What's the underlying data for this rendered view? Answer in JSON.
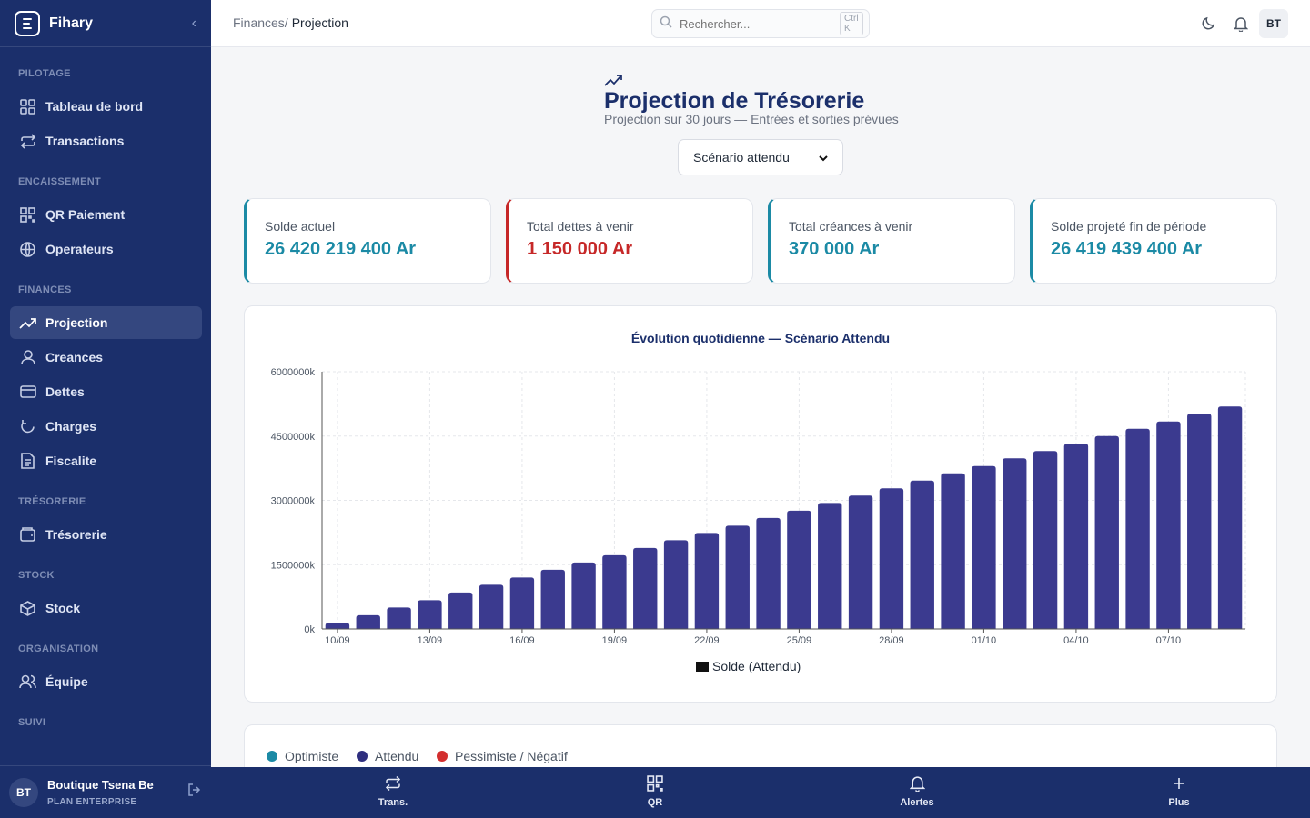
{
  "app": {
    "name": "Fihary"
  },
  "sidebar": {
    "sections": [
      {
        "label": "PILOTAGE"
      },
      {
        "label": "ENCAISSEMENT"
      },
      {
        "label": "FINANCES"
      },
      {
        "label": "TRÉSORERIE"
      },
      {
        "label": "STOCK"
      },
      {
        "label": "ORGANISATION"
      },
      {
        "label": "SUIVI"
      }
    ],
    "items": [
      {
        "label": "Tableau de bord",
        "icon": "grid-icon"
      },
      {
        "label": "Transactions",
        "icon": "repeat-icon"
      },
      {
        "label": "QR Paiement",
        "icon": "qr-icon"
      },
      {
        "label": "Operateurs",
        "icon": "globe-icon"
      },
      {
        "label": "Projection",
        "icon": "trending-up-icon",
        "active": true
      },
      {
        "label": "Creances",
        "icon": "user-icon"
      },
      {
        "label": "Dettes",
        "icon": "card-icon"
      },
      {
        "label": "Charges",
        "icon": "refresh-icon"
      },
      {
        "label": "Fiscalite",
        "icon": "document-icon"
      },
      {
        "label": "Trésorerie",
        "icon": "wallet-icon"
      },
      {
        "label": "Stock",
        "icon": "box-icon"
      },
      {
        "label": "Équipe",
        "icon": "users-icon"
      }
    ],
    "footer": {
      "initials": "BT",
      "org_name": "Boutique Tsena Be",
      "plan": "PLAN ENTERPRISE"
    }
  },
  "topbar": {
    "breadcrumb_parent": "Finances/",
    "breadcrumb_current": "Projection",
    "search_placeholder": "Rechercher...",
    "search_shortcut": "Ctrl K",
    "avatar": "BT"
  },
  "page": {
    "title": "Projection de Trésorerie",
    "subtitle": "Projection sur 30 jours — Entrées et sorties prévues",
    "scenario_selected": "Scénario attendu"
  },
  "kpis": [
    {
      "label": "Solde actuel",
      "value": "26 420 219 400 Ar",
      "color": "#1b8aa5"
    },
    {
      "label": "Total dettes à venir",
      "value": "1 150 000 Ar",
      "color": "#c62828"
    },
    {
      "label": "Total créances à venir",
      "value": "370 000 Ar",
      "color": "#1b8aa5"
    },
    {
      "label": "Solde projeté fin de période",
      "value": "26 419 439 400 Ar",
      "color": "#1b8aa5"
    }
  ],
  "chart_data": {
    "type": "bar",
    "title": "Évolution quotidienne — Scénario Attendu",
    "xlabel": "",
    "ylabel": "",
    "y_tick_labels": [
      "0k",
      "1500000k",
      "3000000k",
      "4500000k",
      "6000000k"
    ],
    "ylim": [
      0,
      6000000
    ],
    "categories": [
      "10/09",
      "11/09",
      "12/09",
      "13/09",
      "14/09",
      "15/09",
      "16/09",
      "17/09",
      "18/09",
      "19/09",
      "20/09",
      "21/09",
      "22/09",
      "23/09",
      "24/09",
      "25/09",
      "26/09",
      "27/09",
      "28/09",
      "29/09",
      "30/09",
      "01/10",
      "02/10",
      "03/10",
      "04/10",
      "05/10",
      "06/10",
      "07/10",
      "08/10",
      "09/10"
    ],
    "x_tick_labels": [
      "10/09",
      "13/09",
      "16/09",
      "19/09",
      "22/09",
      "25/09",
      "28/09",
      "01/10",
      "04/10",
      "07/10"
    ],
    "series": [
      {
        "name": "Solde (Attendu)",
        "color": "#3b3a8f",
        "values": [
          140000,
          320000,
          500000,
          670000,
          850000,
          1030000,
          1200000,
          1380000,
          1550000,
          1720000,
          1890000,
          2070000,
          2240000,
          2410000,
          2590000,
          2760000,
          2940000,
          3110000,
          3280000,
          3460000,
          3630000,
          3800000,
          3980000,
          4150000,
          4320000,
          4500000,
          4670000,
          4840000,
          5020000,
          5190000
        ]
      }
    ],
    "legend_position": "bottom",
    "grid": true
  },
  "scenario_legend": [
    {
      "label": "Optimiste",
      "color": "#1b8aa5"
    },
    {
      "label": "Attendu",
      "color": "#2f2f7f"
    },
    {
      "label": "Pessimiste / Négatif",
      "color": "#d32f2f"
    }
  ],
  "bottomnav": [
    {
      "label": "Trans.",
      "icon": "repeat-icon"
    },
    {
      "label": "QR",
      "icon": "qr-icon"
    },
    {
      "label": "Alertes",
      "icon": "bell-icon"
    },
    {
      "label": "Plus",
      "icon": "plus-icon"
    }
  ]
}
